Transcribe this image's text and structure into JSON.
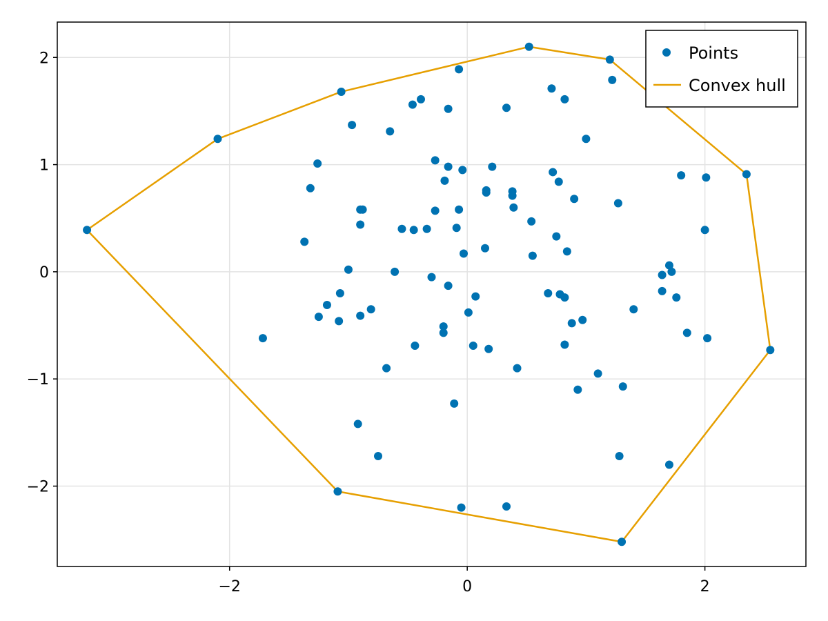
{
  "chart_data": {
    "type": "scatter",
    "title": "",
    "xlabel": "",
    "ylabel": "",
    "xlim": [
      -3.45,
      2.85
    ],
    "ylim": [
      -2.75,
      2.33
    ],
    "xticks": [
      -2,
      0,
      2
    ],
    "yticks": [
      -2,
      -1,
      0,
      1,
      2
    ],
    "grid": true,
    "legend_position": "top-right",
    "series": [
      {
        "name": "Points",
        "kind": "scatter",
        "color": "#0072b2",
        "x": [
          0.52,
          1.2,
          1.22,
          -0.07,
          -1.06,
          0.71,
          -0.39,
          -0.46,
          0.82,
          -0.16,
          0.33,
          -0.97,
          -0.65,
          -2.1,
          1.0,
          -0.27,
          -1.26,
          -0.16,
          0.21,
          -0.04,
          0.72,
          1.8,
          2.35,
          2.01,
          -0.19,
          0.77,
          -1.32,
          0.16,
          0.16,
          0.38,
          0.38,
          0.9,
          1.27,
          -0.9,
          -0.88,
          -0.27,
          -0.07,
          0.39,
          -0.9,
          0.54,
          -0.55,
          -0.45,
          -0.34,
          -0.09,
          2.0,
          -3.2,
          -1.37,
          0.75,
          0.15,
          0.84,
          -0.03,
          0.55,
          1.7,
          -1.0,
          -0.61,
          1.64,
          1.72,
          -0.3,
          -0.16,
          0.68,
          0.78,
          1.64,
          0.82,
          0.07,
          -1.07,
          1.76,
          -1.18,
          -0.81,
          1.4,
          -0.9,
          0.01,
          -1.25,
          0.97,
          -1.08,
          0.88,
          -0.2,
          -0.2,
          1.85,
          -1.72,
          2.02,
          -0.44,
          0.05,
          0.18,
          0.82,
          2.55,
          -0.68,
          0.42,
          1.1,
          1.31,
          0.93,
          -0.11,
          -0.92,
          -0.75,
          1.28,
          1.7,
          -1.09,
          0.33,
          -0.05,
          1.3
        ],
        "y": [
          2.1,
          1.98,
          1.79,
          1.89,
          1.68,
          1.71,
          1.61,
          1.56,
          1.61,
          1.52,
          1.53,
          1.37,
          1.31,
          1.24,
          1.24,
          1.04,
          1.01,
          0.98,
          0.98,
          0.95,
          0.93,
          0.9,
          0.91,
          0.88,
          0.85,
          0.84,
          0.78,
          0.76,
          0.74,
          0.75,
          0.71,
          0.68,
          0.64,
          0.58,
          0.58,
          0.57,
          0.58,
          0.6,
          0.44,
          0.47,
          0.4,
          0.39,
          0.4,
          0.41,
          0.39,
          0.39,
          0.28,
          0.33,
          0.22,
          0.19,
          0.17,
          0.15,
          0.06,
          0.02,
          0.0,
          -0.03,
          0.0,
          -0.05,
          -0.13,
          -0.2,
          -0.21,
          -0.18,
          -0.24,
          -0.23,
          -0.2,
          -0.24,
          -0.31,
          -0.35,
          -0.35,
          -0.41,
          -0.38,
          -0.42,
          -0.45,
          -0.46,
          -0.48,
          -0.51,
          -0.57,
          -0.57,
          -0.62,
          -0.62,
          -0.69,
          -0.69,
          -0.72,
          -0.68,
          -0.73,
          -0.9,
          -0.9,
          -0.95,
          -1.07,
          -1.1,
          -1.23,
          -1.42,
          -1.72,
          -1.72,
          -1.8,
          -2.05,
          -2.19,
          -2.2,
          -2.52
        ]
      },
      {
        "name": "Convex hull",
        "kind": "line",
        "color": "#e69f00",
        "x": [
          -3.2,
          -2.1,
          -1.06,
          0.52,
          1.2,
          2.35,
          2.55,
          1.3,
          -1.09,
          -3.2
        ],
        "y": [
          0.39,
          1.24,
          1.68,
          2.1,
          1.98,
          0.91,
          -0.73,
          -2.52,
          -2.05,
          0.39
        ]
      }
    ]
  }
}
